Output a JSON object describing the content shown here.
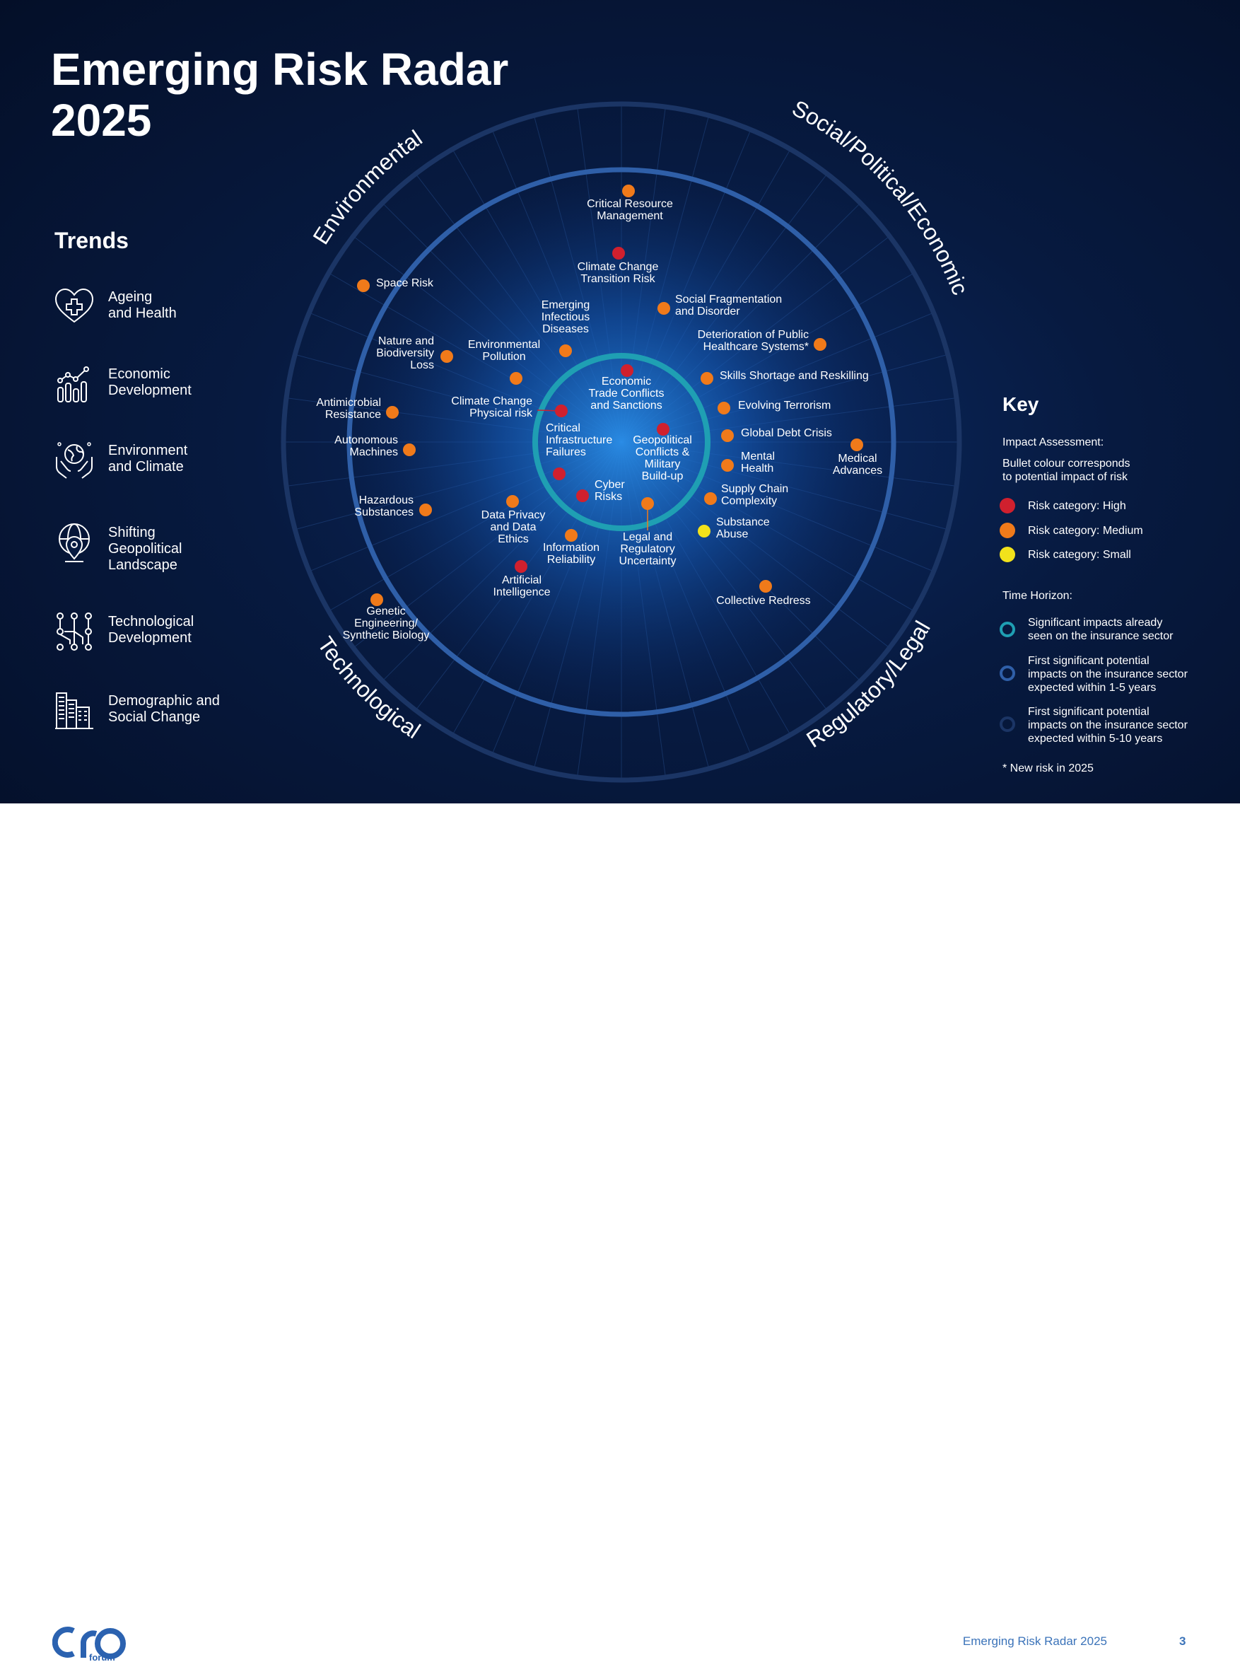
{
  "title_line1": "Emerging Risk Radar",
  "title_line2": "2025",
  "trends": {
    "heading": "Trends",
    "items": [
      {
        "label": "Ageing\nand Health",
        "icon": "heart-plus-icon"
      },
      {
        "label": "Economic\nDevelopment",
        "icon": "growth-chart-icon"
      },
      {
        "label": "Environment\nand Climate",
        "icon": "globe-hands-icon"
      },
      {
        "label": "Shifting\nGeopolitical\nLandscape",
        "icon": "globe-pin-icon"
      },
      {
        "label": "Technological\nDevelopment",
        "icon": "circuit-icon"
      },
      {
        "label": "Demographic and\nSocial Change",
        "icon": "buildings-icon"
      }
    ]
  },
  "sectors": [
    "Environmental",
    "Social/Political/Economic",
    "Technological",
    "Regulatory/Legal"
  ],
  "colors": {
    "high": "#d0202e",
    "medium": "#f07a1a",
    "small": "#f2e21b",
    "ring_inner": "#1f9fb3",
    "ring_middle": "#2f5fa8",
    "ring_outer": "#1b3565",
    "footer_text": "#3b73b9"
  },
  "risks": [
    {
      "id": "critical-resource-management",
      "label": "Critical Resource\nManagement",
      "impact": "medium"
    },
    {
      "id": "climate-change-transition-risk",
      "label": "Climate Change\nTransition Risk",
      "impact": "high"
    },
    {
      "id": "social-fragmentation",
      "label": "Social Fragmentation\nand Disorder",
      "impact": "medium"
    },
    {
      "id": "emerging-infectious-diseases",
      "label": "Emerging\nInfectious\nDiseases",
      "impact": "medium"
    },
    {
      "id": "deterioration-healthcare",
      "label": "Deterioration of Public\nHealthcare Systems*",
      "impact": "medium"
    },
    {
      "id": "space-risk",
      "label": "Space Risk",
      "impact": "medium"
    },
    {
      "id": "nature-biodiversity-loss",
      "label": "Nature and\nBiodiversity\nLoss",
      "impact": "medium"
    },
    {
      "id": "environmental-pollution",
      "label": "Environmental\nPollution",
      "impact": "medium"
    },
    {
      "id": "economic-trade-conflicts",
      "label": "Economic\nTrade Conflicts\nand Sanctions",
      "impact": "high"
    },
    {
      "id": "skills-shortage",
      "label": "Skills Shortage and Reskilling",
      "impact": "medium"
    },
    {
      "id": "antimicrobial-resistance",
      "label": "Antimicrobial\nResistance",
      "impact": "medium"
    },
    {
      "id": "climate-change-physical-risk",
      "label": "Climate Change\nPhysical risk",
      "impact": "high"
    },
    {
      "id": "evolving-terrorism",
      "label": "Evolving Terrorism",
      "impact": "medium"
    },
    {
      "id": "geopolitical-conflicts",
      "label": "Geopolitical\nConflicts &\nMilitary\nBuild-up",
      "impact": "high"
    },
    {
      "id": "global-debt-crisis",
      "label": "Global Debt Crisis",
      "impact": "medium"
    },
    {
      "id": "autonomous-machines",
      "label": "Autonomous\nMachines",
      "impact": "medium"
    },
    {
      "id": "critical-infrastructure-failures",
      "label": "Critical\nInfrastructure\nFailures",
      "impact": "high"
    },
    {
      "id": "medical-advances",
      "label": "Medical\nAdvances",
      "impact": "medium"
    },
    {
      "id": "mental-health",
      "label": "Mental\nHealth",
      "impact": "medium"
    },
    {
      "id": "cyber-risks",
      "label": "Cyber\nRisks",
      "impact": "high"
    },
    {
      "id": "supply-chain-complexity",
      "label": "Supply Chain\nComplexity",
      "impact": "medium"
    },
    {
      "id": "hazardous-substances",
      "label": "Hazardous\nSubstances",
      "impact": "medium"
    },
    {
      "id": "data-privacy-ethics",
      "label": "Data Privacy\nand Data\nEthics",
      "impact": "medium"
    },
    {
      "id": "legal-regulatory-uncertainty",
      "label": "Legal and\nRegulatory\nUncertainty",
      "impact": "medium"
    },
    {
      "id": "substance-abuse",
      "label": "Substance\nAbuse",
      "impact": "small"
    },
    {
      "id": "information-reliability",
      "label": "Information\nReliability",
      "impact": "medium"
    },
    {
      "id": "artificial-intelligence",
      "label": "Artificial\nIntelligence",
      "impact": "high"
    },
    {
      "id": "collective-redress",
      "label": "Collective Redress",
      "impact": "medium"
    },
    {
      "id": "genetic-engineering",
      "label": "Genetic\nEngineering/\nSynthetic Biology",
      "impact": "medium"
    }
  ],
  "key": {
    "title": "Key",
    "impact_heading": "Impact Assessment:",
    "impact_note": "Bullet colour corresponds\nto potential impact of risk",
    "impact_items": [
      {
        "label": "Risk category: High",
        "color": "#d0202e"
      },
      {
        "label": "Risk category: Medium",
        "color": "#f07a1a"
      },
      {
        "label": "Risk category: Small",
        "color": "#f2e21b"
      }
    ],
    "time_heading": "Time Horizon:",
    "time_items": [
      {
        "label": "Significant impacts already\nseen on the insurance sector",
        "color": "#1f9fb3"
      },
      {
        "label": "First significant potential\nimpacts on the insurance sector\nexpected within 1-5 years",
        "color": "#2f5fa8"
      },
      {
        "label": "First significant potential\nimpacts on the insurance sector\nexpected within 5-10 years",
        "color": "#1b3565"
      }
    ],
    "new_note": "* New risk in 2025"
  },
  "footer": {
    "logo_text": "cro",
    "logo_sub": "forum",
    "page_label": "Emerging Risk Radar 2025",
    "page_number": "3"
  }
}
